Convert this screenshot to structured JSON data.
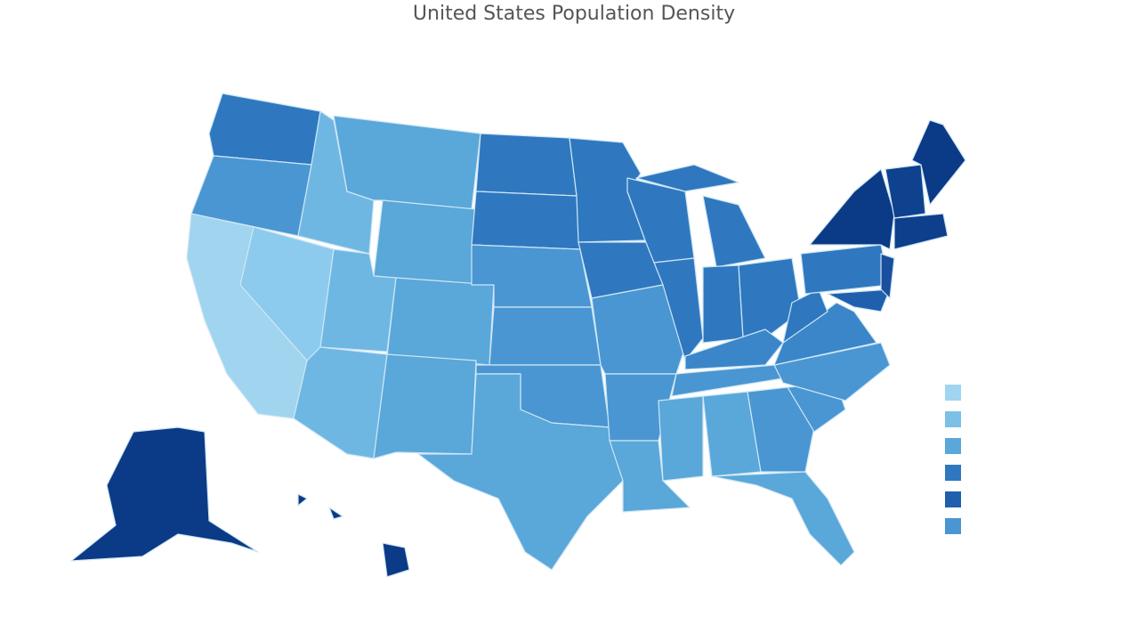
{
  "title": "United States Population Density"
}
